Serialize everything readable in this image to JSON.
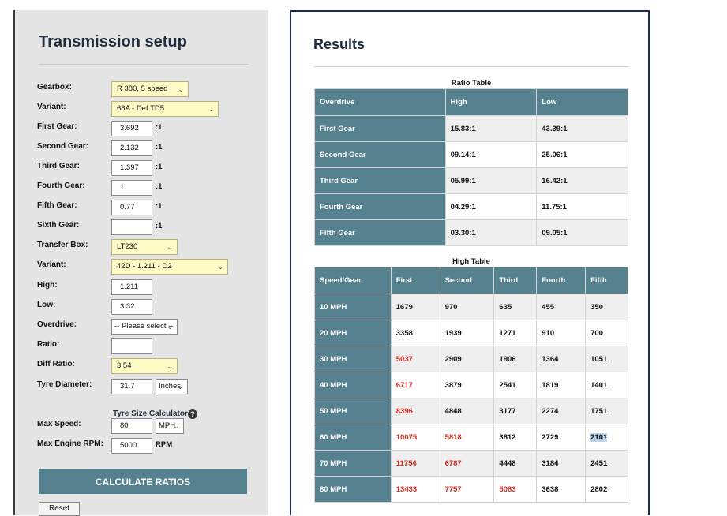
{
  "setup": {
    "title": "Transmission setup",
    "fields": {
      "gearbox": {
        "label": "Gearbox:",
        "value": "R 380, 5 speed"
      },
      "variant1": {
        "label": "Variant:",
        "value": "68A - Def TD5"
      },
      "first": {
        "label": "First Gear:",
        "value": "3.692"
      },
      "second": {
        "label": "Second Gear:",
        "value": "2.132"
      },
      "third": {
        "label": "Third Gear:",
        "value": "1.397"
      },
      "fourth": {
        "label": "Fourth Gear:",
        "value": "1"
      },
      "fifth": {
        "label": "Fifth Gear:",
        "value": "0.77"
      },
      "sixth": {
        "label": "Sixth Gear:",
        "value": ""
      },
      "transfer": {
        "label": "Transfer Box:",
        "value": "LT230"
      },
      "variant2": {
        "label": "Variant:",
        "value": "42D - 1.211 - D2"
      },
      "high": {
        "label": "High:",
        "value": "1.211"
      },
      "low": {
        "label": "Low:",
        "value": "3.32"
      },
      "overdrive": {
        "label": "Overdrive:",
        "value": "-- Please select --"
      },
      "ratio": {
        "label": "Ratio:",
        "value": ""
      },
      "diff": {
        "label": "Diff Ratio:",
        "value": "3.54"
      },
      "tyre": {
        "label": "Tyre Diameter:",
        "value": "31.7",
        "unit": "Inches"
      },
      "maxspeed": {
        "label": "Max Speed:",
        "value": "80",
        "unit": "MPH"
      },
      "maxrpm": {
        "label": "Max Engine RPM:",
        "value": "5000",
        "unit": "RPM"
      }
    },
    "ratio_suffix": ":1",
    "tyre_calc_link": "Tyre Size Calculator",
    "help_icon": "question-circle-icon",
    "calc_button": "CALCULATE RATIOS",
    "reset_button": "Reset"
  },
  "results": {
    "title": "Results",
    "ratio_table": {
      "caption": "Ratio Table",
      "headers": [
        "Overdrive",
        "High",
        "Low"
      ],
      "rows": [
        [
          "First Gear",
          "15.83:1",
          "43.39:1"
        ],
        [
          "Second Gear",
          "09.14:1",
          "25.06:1"
        ],
        [
          "Third Gear",
          "05.99:1",
          "16.42:1"
        ],
        [
          "Fourth Gear",
          "04.29:1",
          "11.75:1"
        ],
        [
          "Fifth Gear",
          "03.30:1",
          "09.05:1"
        ]
      ]
    },
    "high_table": {
      "caption": "High Table",
      "headers": [
        "Speed/Gear",
        "First",
        "Second",
        "Third",
        "Fourth",
        "Fifth"
      ],
      "rows": [
        [
          "10 MPH",
          "1679",
          "970",
          "635",
          "455",
          "350"
        ],
        [
          "20 MPH",
          "3358",
          "1939",
          "1271",
          "910",
          "700"
        ],
        [
          "30 MPH",
          "5037",
          "2909",
          "1906",
          "1364",
          "1051"
        ],
        [
          "40 MPH",
          "6717",
          "3879",
          "2541",
          "1819",
          "1401"
        ],
        [
          "50 MPH",
          "8396",
          "4848",
          "3177",
          "2274",
          "1751"
        ],
        [
          "60 MPH",
          "10075",
          "5818",
          "3812",
          "2729",
          "2101"
        ],
        [
          "70 MPH",
          "11754",
          "6787",
          "4448",
          "3184",
          "2451"
        ],
        [
          "80 MPH",
          "13433",
          "7757",
          "5083",
          "3638",
          "2802"
        ]
      ],
      "over_limit_color": "#d62b1f"
    }
  },
  "colors": {
    "header_bg": "#56828f",
    "yellow_select": "#fffbc7",
    "panel_bg": "#e5e5e5"
  }
}
